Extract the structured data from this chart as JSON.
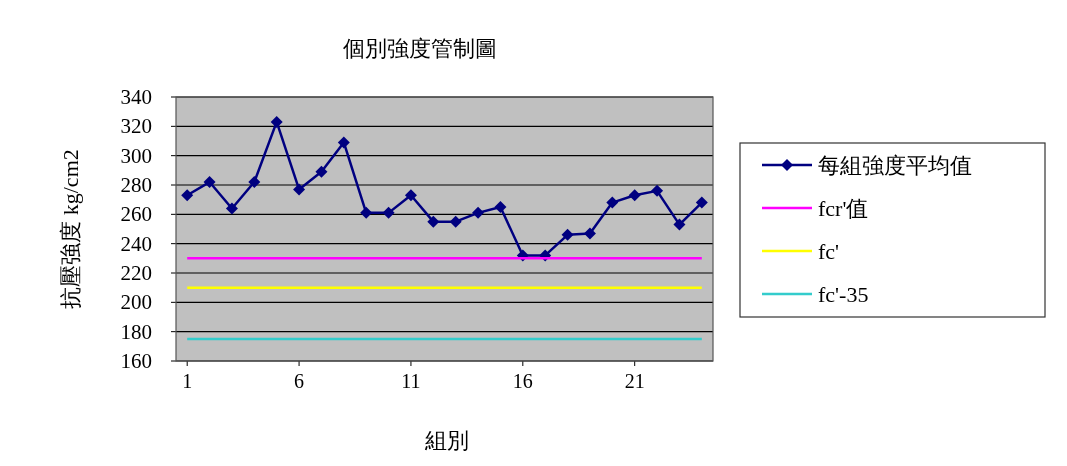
{
  "chart_data": {
    "type": "line",
    "title": "個別強度管制圖",
    "xlabel": "組別",
    "ylabel": "抗壓強度 kg/cm2",
    "x": [
      1,
      2,
      3,
      4,
      5,
      6,
      7,
      8,
      9,
      10,
      11,
      12,
      13,
      14,
      15,
      16,
      17,
      18,
      19,
      20,
      21,
      22,
      23,
      24
    ],
    "series": [
      {
        "name": "每組強度平均值",
        "color": "#000080",
        "marker": "diamond",
        "values": [
          273,
          282,
          264,
          282,
          323,
          277,
          289,
          309,
          261,
          261,
          273,
          255,
          255,
          261,
          265,
          232,
          232,
          246,
          247,
          268,
          273,
          276,
          253,
          268
        ]
      },
      {
        "name": "fcr'值",
        "color": "#ff00ff",
        "marker": "none",
        "values": [
          230,
          230,
          230,
          230,
          230,
          230,
          230,
          230,
          230,
          230,
          230,
          230,
          230,
          230,
          230,
          230,
          230,
          230,
          230,
          230,
          230,
          230,
          230,
          230
        ]
      },
      {
        "name": "fc'",
        "color": "#ffff00",
        "marker": "none",
        "values": [
          210,
          210,
          210,
          210,
          210,
          210,
          210,
          210,
          210,
          210,
          210,
          210,
          210,
          210,
          210,
          210,
          210,
          210,
          210,
          210,
          210,
          210,
          210,
          210
        ]
      },
      {
        "name": "fc'-35",
        "color": "#33cccc",
        "marker": "none",
        "values": [
          175,
          175,
          175,
          175,
          175,
          175,
          175,
          175,
          175,
          175,
          175,
          175,
          175,
          175,
          175,
          175,
          175,
          175,
          175,
          175,
          175,
          175,
          175,
          175
        ]
      }
    ],
    "xlim": [
      0.5,
      24.5
    ],
    "xticks": [
      1,
      6,
      11,
      16,
      21
    ],
    "ylim": [
      160,
      340
    ],
    "yticks": [
      160,
      180,
      200,
      220,
      240,
      260,
      280,
      300,
      320,
      340
    ],
    "grid": "y",
    "legend": "right"
  }
}
